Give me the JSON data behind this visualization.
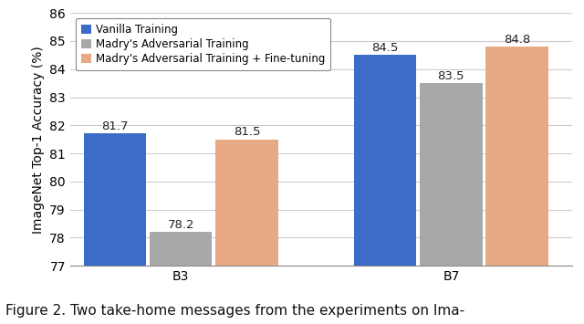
{
  "groups": [
    "B3",
    "B7"
  ],
  "series": [
    {
      "label": "Vanilla Training",
      "color": "#3a6cc8",
      "values": [
        81.7,
        84.5
      ]
    },
    {
      "label": "Madry's Adversarial Training",
      "color": "#a8a8a8",
      "values": [
        78.2,
        83.5
      ]
    },
    {
      "label": "Madry's Adversarial Training + Fine-tuning",
      "color": "#e8aa84",
      "values": [
        81.5,
        84.8
      ]
    }
  ],
  "ylabel": "ImageNet Top-1 Accuracy (%)",
  "ylim": [
    77,
    86
  ],
  "yticks": [
    77,
    78,
    79,
    80,
    81,
    82,
    83,
    84,
    85,
    86
  ],
  "bar_width": 0.18,
  "caption": "Figure 2. Two take-home messages from the experiments on Ima-",
  "caption_fontsize": 11,
  "background_color": "#ffffff",
  "grid_color": "#cccccc",
  "label_fontsize": 9.5,
  "axis_fontsize": 10,
  "tick_fontsize": 10
}
